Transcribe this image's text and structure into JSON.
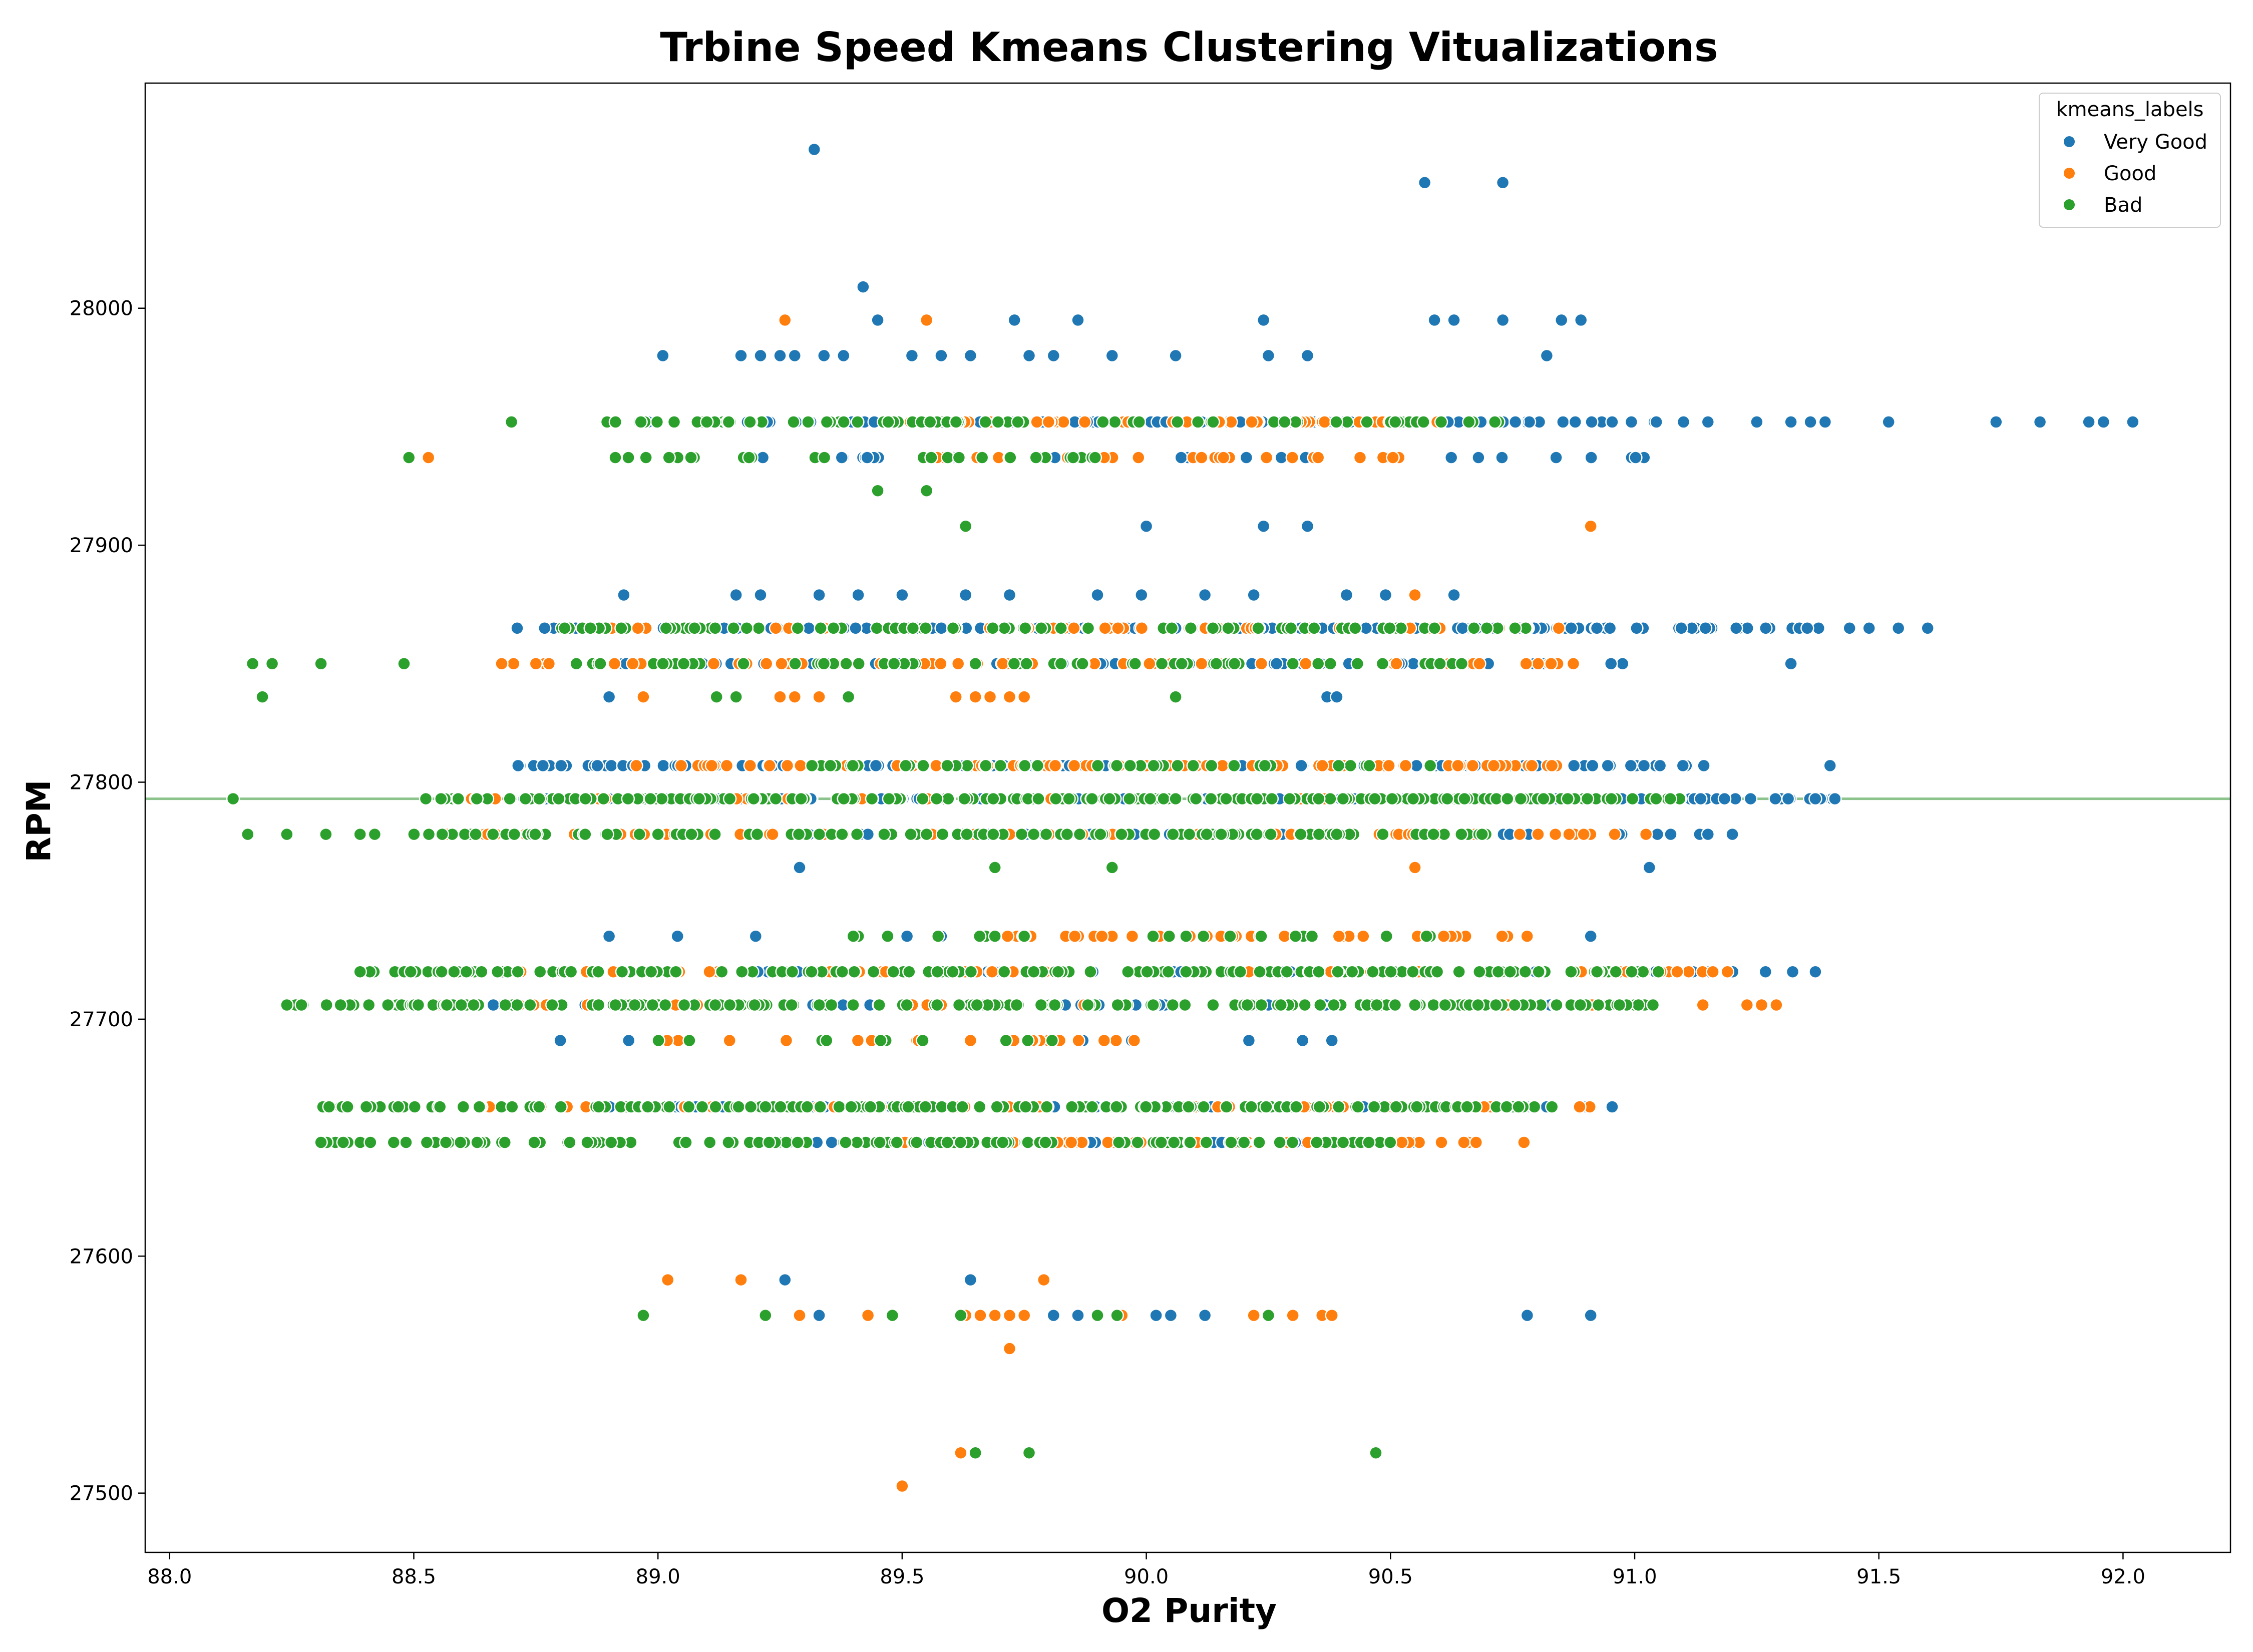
{
  "chart_data": {
    "type": "scatter",
    "title": "Trbine Speed Kmeans Clustering Vitualizations",
    "xlabel": "O2 Purity",
    "ylabel": "RPM",
    "xlim": [
      87.95,
      92.22
    ],
    "ylim": [
      27475,
      28095
    ],
    "x_ticks": [
      "88.0",
      "88.5",
      "89.0",
      "89.5",
      "90.0",
      "90.5",
      "91.0",
      "91.5",
      "92.0"
    ],
    "y_ticks": [
      "27500",
      "27600",
      "27700",
      "27800",
      "27900",
      "28000"
    ],
    "grid": false,
    "reference_line": {
      "y": 27793,
      "color": "#8cc28c"
    },
    "legend": {
      "title": "kmeans_labels",
      "placement": "top-right"
    },
    "rpm_levels": [
      27575,
      27648,
      27663,
      27706,
      27720,
      27778,
      27793,
      27807,
      27850,
      27865,
      27937,
      27952
    ],
    "series": [
      {
        "name": "Very Good",
        "color": "#1f77b4",
        "bands": [
          {
            "y": 27952,
            "x_min": 88.95,
            "x_max": 91.05,
            "n": 140
          },
          {
            "y": 27937,
            "x_min": 89.2,
            "x_max": 91.05,
            "n": 40
          },
          {
            "y": 27865,
            "x_min": 88.7,
            "x_max": 91.4,
            "n": 150
          },
          {
            "y": 27850,
            "x_min": 88.9,
            "x_max": 90.99,
            "n": 60
          },
          {
            "y": 27807,
            "x_min": 88.7,
            "x_max": 91.2,
            "n": 120
          },
          {
            "y": 27793,
            "x_min": 88.7,
            "x_max": 91.41,
            "n": 130
          },
          {
            "y": 27778,
            "x_min": 89.2,
            "x_max": 91.2,
            "n": 40
          },
          {
            "y": 27720,
            "x_min": 89.2,
            "x_max": 91.39,
            "n": 50
          },
          {
            "y": 27706,
            "x_min": 88.6,
            "x_max": 91.03,
            "n": 40
          },
          {
            "y": 27663,
            "x_min": 88.9,
            "x_max": 91.0,
            "n": 60
          },
          {
            "y": 27648,
            "x_min": 89.3,
            "x_max": 90.6,
            "n": 30
          }
        ],
        "points": [
          [
            89.32,
            28067
          ],
          [
            90.57,
            28053
          ],
          [
            90.73,
            28053
          ],
          [
            89.42,
            28009
          ],
          [
            89.45,
            27995
          ],
          [
            89.73,
            27995
          ],
          [
            89.86,
            27995
          ],
          [
            90.24,
            27995
          ],
          [
            90.59,
            27995
          ],
          [
            90.63,
            27995
          ],
          [
            90.73,
            27995
          ],
          [
            90.85,
            27995
          ],
          [
            90.89,
            27995
          ],
          [
            89.01,
            27980
          ],
          [
            89.17,
            27980
          ],
          [
            89.21,
            27980
          ],
          [
            89.25,
            27980
          ],
          [
            89.28,
            27980
          ],
          [
            89.34,
            27980
          ],
          [
            89.38,
            27980
          ],
          [
            89.52,
            27980
          ],
          [
            89.58,
            27980
          ],
          [
            89.64,
            27980
          ],
          [
            89.76,
            27980
          ],
          [
            89.81,
            27980
          ],
          [
            89.93,
            27980
          ],
          [
            90.06,
            27980
          ],
          [
            90.25,
            27980
          ],
          [
            90.33,
            27980
          ],
          [
            90.82,
            27980
          ],
          [
            91.1,
            27952
          ],
          [
            91.15,
            27952
          ],
          [
            91.25,
            27952
          ],
          [
            91.32,
            27952
          ],
          [
            91.36,
            27952
          ],
          [
            91.39,
            27952
          ],
          [
            91.52,
            27952
          ],
          [
            91.74,
            27952
          ],
          [
            91.83,
            27952
          ],
          [
            91.93,
            27952
          ],
          [
            91.96,
            27952
          ],
          [
            92.02,
            27952
          ],
          [
            90.0,
            27908
          ],
          [
            90.24,
            27908
          ],
          [
            90.33,
            27908
          ],
          [
            88.93,
            27879
          ],
          [
            89.16,
            27879
          ],
          [
            89.21,
            27879
          ],
          [
            89.33,
            27879
          ],
          [
            89.41,
            27879
          ],
          [
            89.5,
            27879
          ],
          [
            89.63,
            27879
          ],
          [
            89.72,
            27879
          ],
          [
            89.9,
            27879
          ],
          [
            89.99,
            27879
          ],
          [
            90.12,
            27879
          ],
          [
            90.22,
            27879
          ],
          [
            90.41,
            27879
          ],
          [
            90.49,
            27879
          ],
          [
            90.63,
            27879
          ],
          [
            91.44,
            27865
          ],
          [
            91.48,
            27865
          ],
          [
            91.54,
            27865
          ],
          [
            91.6,
            27865
          ],
          [
            91.32,
            27850
          ],
          [
            88.9,
            27836
          ],
          [
            90.37,
            27836
          ],
          [
            90.39,
            27836
          ],
          [
            91.4,
            27807
          ],
          [
            91.41,
            27793
          ],
          [
            91.37,
            27793
          ],
          [
            91.15,
            27778
          ],
          [
            91.2,
            27778
          ],
          [
            89.29,
            27764
          ],
          [
            91.03,
            27764
          ],
          [
            88.9,
            27735
          ],
          [
            89.04,
            27735
          ],
          [
            89.2,
            27735
          ],
          [
            89.51,
            27735
          ],
          [
            89.58,
            27735
          ],
          [
            90.91,
            27735
          ],
          [
            91.37,
            27720
          ],
          [
            88.8,
            27691
          ],
          [
            88.94,
            27691
          ],
          [
            89.87,
            27691
          ],
          [
            89.97,
            27691
          ],
          [
            90.21,
            27691
          ],
          [
            90.32,
            27691
          ],
          [
            90.38,
            27691
          ],
          [
            89.26,
            27590
          ],
          [
            89.64,
            27590
          ],
          [
            89.33,
            27575
          ],
          [
            89.81,
            27575
          ],
          [
            89.86,
            27575
          ],
          [
            90.02,
            27575
          ],
          [
            90.05,
            27575
          ],
          [
            90.12,
            27575
          ],
          [
            90.78,
            27575
          ],
          [
            90.91,
            27575
          ]
        ]
      },
      {
        "name": "Good",
        "color": "#ff7f0e",
        "bands": [
          {
            "y": 27952,
            "x_min": 89.5,
            "x_max": 90.6,
            "n": 50
          },
          {
            "y": 27937,
            "x_min": 89.5,
            "x_max": 90.55,
            "n": 30
          },
          {
            "y": 27865,
            "x_min": 88.85,
            "x_max": 90.9,
            "n": 50
          },
          {
            "y": 27850,
            "x_min": 88.7,
            "x_max": 91.0,
            "n": 60
          },
          {
            "y": 27807,
            "x_min": 88.95,
            "x_max": 90.9,
            "n": 90
          },
          {
            "y": 27793,
            "x_min": 88.6,
            "x_max": 90.9,
            "n": 30
          },
          {
            "y": 27778,
            "x_min": 88.56,
            "x_max": 91.1,
            "n": 80
          },
          {
            "y": 27735,
            "x_min": 89.7,
            "x_max": 90.8,
            "n": 40
          },
          {
            "y": 27720,
            "x_min": 88.64,
            "x_max": 91.15,
            "n": 50
          },
          {
            "y": 27706,
            "x_min": 88.55,
            "x_max": 91.29,
            "n": 30
          },
          {
            "y": 27691,
            "x_min": 89.0,
            "x_max": 90.1,
            "n": 20
          },
          {
            "y": 27663,
            "x_min": 88.6,
            "x_max": 90.92,
            "n": 50
          },
          {
            "y": 27648,
            "x_min": 89.5,
            "x_max": 90.78,
            "n": 50
          }
        ],
        "points": [
          [
            89.26,
            27995
          ],
          [
            89.55,
            27995
          ],
          [
            88.53,
            27937
          ],
          [
            90.91,
            27908
          ],
          [
            88.68,
            27850
          ],
          [
            88.75,
            27850
          ],
          [
            88.97,
            27836
          ],
          [
            89.25,
            27836
          ],
          [
            89.28,
            27836
          ],
          [
            89.33,
            27836
          ],
          [
            89.61,
            27836
          ],
          [
            89.65,
            27836
          ],
          [
            89.68,
            27836
          ],
          [
            89.72,
            27836
          ],
          [
            89.75,
            27836
          ],
          [
            90.55,
            27879
          ],
          [
            90.55,
            27764
          ],
          [
            91.16,
            27720
          ],
          [
            91.19,
            27720
          ],
          [
            91.23,
            27706
          ],
          [
            91.29,
            27706
          ],
          [
            89.02,
            27590
          ],
          [
            89.17,
            27590
          ],
          [
            89.79,
            27590
          ],
          [
            89.29,
            27575
          ],
          [
            89.43,
            27575
          ],
          [
            89.63,
            27575
          ],
          [
            89.66,
            27575
          ],
          [
            89.69,
            27575
          ],
          [
            89.72,
            27575
          ],
          [
            89.75,
            27575
          ],
          [
            89.95,
            27575
          ],
          [
            90.22,
            27575
          ],
          [
            90.3,
            27575
          ],
          [
            90.36,
            27575
          ],
          [
            90.38,
            27575
          ],
          [
            89.72,
            27561
          ],
          [
            89.62,
            27517
          ],
          [
            89.5,
            27503
          ]
        ]
      },
      {
        "name": "Bad",
        "color": "#2ca02c",
        "bands": [
          {
            "y": 27952,
            "x_min": 88.89,
            "x_max": 90.75,
            "n": 80
          },
          {
            "y": 27937,
            "x_min": 88.9,
            "x_max": 89.9,
            "n": 30
          },
          {
            "y": 27865,
            "x_min": 88.8,
            "x_max": 90.85,
            "n": 80
          },
          {
            "y": 27850,
            "x_min": 88.8,
            "x_max": 90.7,
            "n": 60
          },
          {
            "y": 27807,
            "x_min": 89.3,
            "x_max": 90.6,
            "n": 40
          },
          {
            "y": 27793,
            "x_min": 88.52,
            "x_max": 91.1,
            "n": 220
          },
          {
            "y": 27778,
            "x_min": 88.5,
            "x_max": 90.7,
            "n": 120
          },
          {
            "y": 27735,
            "x_min": 89.4,
            "x_max": 90.6,
            "n": 20
          },
          {
            "y": 27720,
            "x_min": 88.38,
            "x_max": 91.05,
            "n": 170
          },
          {
            "y": 27706,
            "x_min": 88.25,
            "x_max": 91.05,
            "n": 200
          },
          {
            "y": 27691,
            "x_min": 88.9,
            "x_max": 89.9,
            "n": 10
          },
          {
            "y": 27663,
            "x_min": 88.27,
            "x_max": 90.85,
            "n": 180
          },
          {
            "y": 27648,
            "x_min": 88.31,
            "x_max": 90.5,
            "n": 140
          }
        ],
        "points": [
          [
            88.7,
            27952
          ],
          [
            88.49,
            27937
          ],
          [
            89.45,
            27923
          ],
          [
            89.55,
            27923
          ],
          [
            89.63,
            27908
          ],
          [
            88.17,
            27850
          ],
          [
            88.21,
            27850
          ],
          [
            88.31,
            27850
          ],
          [
            88.48,
            27850
          ],
          [
            88.19,
            27836
          ],
          [
            89.12,
            27836
          ],
          [
            89.16,
            27836
          ],
          [
            89.39,
            27836
          ],
          [
            90.06,
            27836
          ],
          [
            88.13,
            27793
          ],
          [
            88.16,
            27778
          ],
          [
            88.24,
            27778
          ],
          [
            88.32,
            27778
          ],
          [
            88.39,
            27778
          ],
          [
            88.42,
            27778
          ],
          [
            89.69,
            27764
          ],
          [
            89.93,
            27764
          ],
          [
            89.4,
            27735
          ],
          [
            89.69,
            27735
          ],
          [
            89.75,
            27735
          ],
          [
            88.39,
            27720
          ],
          [
            88.24,
            27706
          ],
          [
            88.27,
            27706
          ],
          [
            88.35,
            27706
          ],
          [
            88.31,
            27648
          ],
          [
            88.97,
            27575
          ],
          [
            89.22,
            27575
          ],
          [
            89.48,
            27575
          ],
          [
            89.62,
            27575
          ],
          [
            89.9,
            27575
          ],
          [
            89.94,
            27575
          ],
          [
            90.25,
            27575
          ],
          [
            89.65,
            27517
          ],
          [
            89.76,
            27517
          ],
          [
            90.47,
            27517
          ]
        ]
      }
    ]
  }
}
